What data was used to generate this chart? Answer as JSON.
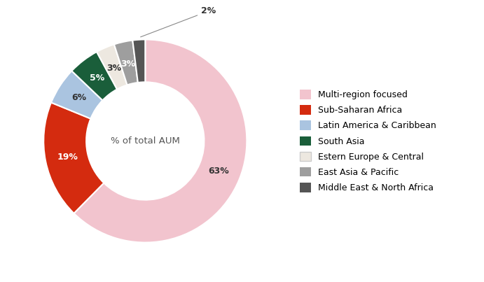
{
  "labels": [
    "Multi-region focused",
    "Sub-Saharan Africa",
    "Latin America & Caribbean",
    "South Asia",
    "Estern Europe & Central",
    "East Asia & Pacific",
    "Middle East & North Africa"
  ],
  "values": [
    63,
    19,
    6,
    5,
    3,
    3,
    2
  ],
  "colors": [
    "#f2c4ce",
    "#d42b0f",
    "#aac4e0",
    "#1a5e3a",
    "#ede8e0",
    "#9e9e9e",
    "#555555"
  ],
  "pct_labels": [
    "63%",
    "19%",
    "6%",
    "5%",
    "3%",
    "3%",
    "2%"
  ],
  "pct_text_colors": [
    "#333333",
    "#ffffff",
    "#333333",
    "#ffffff",
    "#333333",
    "#ffffff",
    "#333333"
  ],
  "center_text": "% of total AUM",
  "figsize": [
    6.91,
    4.03
  ],
  "dpi": 100,
  "background_color": "#ffffff",
  "legend_fontsize": 9,
  "pct_fontsize": 9
}
